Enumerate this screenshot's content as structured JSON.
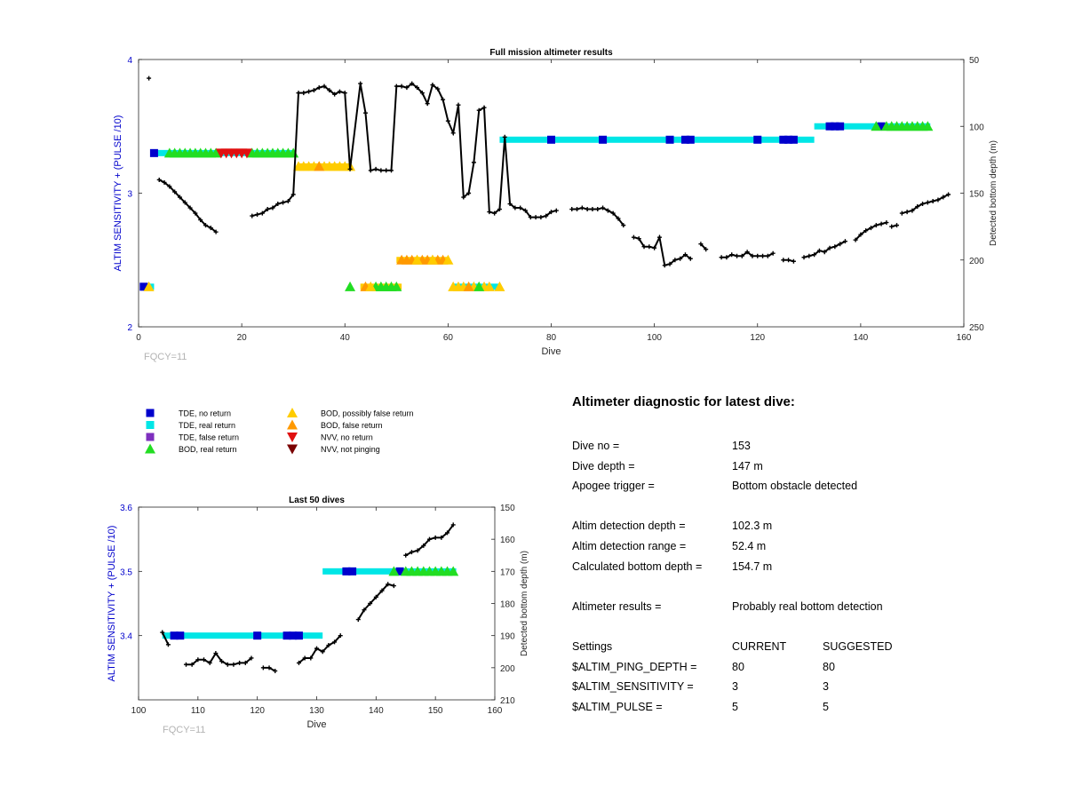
{
  "chart_data": [
    {
      "type": "line",
      "title": "Full mission altimeter results",
      "xlabel": "Dive",
      "ylabel": "ALTIM SENSITIVITY + (PULSE /10)",
      "y2label": "Detected bottom depth (m)",
      "xlim": [
        0,
        160
      ],
      "ylim": [
        2,
        4
      ],
      "y2lim": [
        250,
        50
      ],
      "x_ticks": [
        "0",
        "20",
        "40",
        "60",
        "80",
        "100",
        "120",
        "140",
        "160"
      ],
      "y_ticks": [
        "2",
        "3",
        "4"
      ],
      "y2_ticks": [
        "50",
        "100",
        "150",
        "200",
        "250"
      ],
      "annotation": "FQCY=11",
      "grid": false,
      "bottom_depth_series": [
        [
          [
            2,
            64
          ]
        ],
        [
          [
            4,
            140
          ],
          [
            5,
            142
          ],
          [
            6,
            145
          ],
          [
            7,
            149
          ],
          [
            8,
            153
          ],
          [
            9,
            157
          ],
          [
            10,
            161
          ],
          [
            11,
            165
          ],
          [
            12,
            170
          ],
          [
            13,
            174
          ],
          [
            14,
            176
          ],
          [
            15,
            179
          ]
        ],
        [
          [
            22,
            167
          ],
          [
            23,
            166
          ],
          [
            24,
            165
          ],
          [
            25,
            162
          ],
          [
            26,
            161
          ],
          [
            27,
            158
          ],
          [
            28,
            157
          ],
          [
            29,
            156
          ],
          [
            30,
            151
          ],
          [
            31,
            75
          ],
          [
            32,
            75
          ],
          [
            33,
            74
          ],
          [
            34,
            73
          ],
          [
            35,
            71
          ],
          [
            36,
            70
          ],
          [
            37,
            73
          ],
          [
            38,
            76
          ],
          [
            39,
            74
          ],
          [
            40,
            75
          ],
          [
            41,
            132
          ],
          [
            43,
            68
          ],
          [
            44,
            90
          ],
          [
            45,
            133
          ],
          [
            46,
            132
          ],
          [
            47,
            133
          ],
          [
            48,
            133
          ],
          [
            49,
            133
          ],
          [
            50,
            70
          ],
          [
            51,
            70
          ],
          [
            52,
            71
          ],
          [
            53,
            68
          ],
          [
            54,
            71
          ],
          [
            55,
            75
          ],
          [
            56,
            83
          ],
          [
            57,
            69
          ],
          [
            58,
            72
          ],
          [
            59,
            80
          ],
          [
            60,
            96
          ],
          [
            61,
            105
          ],
          [
            62,
            84
          ],
          [
            63,
            153
          ],
          [
            64,
            150
          ],
          [
            65,
            127
          ],
          [
            66,
            88
          ],
          [
            67,
            86
          ],
          [
            68,
            164
          ],
          [
            69,
            165
          ],
          [
            70,
            162
          ],
          [
            71,
            108
          ],
          [
            72,
            158
          ],
          [
            73,
            161
          ],
          [
            74,
            161
          ],
          [
            75,
            163
          ],
          [
            76,
            168
          ],
          [
            77,
            168
          ],
          [
            78,
            168
          ],
          [
            79,
            167
          ],
          [
            80,
            164
          ],
          [
            81,
            163
          ]
        ],
        [
          [
            84,
            162
          ],
          [
            85,
            162
          ],
          [
            86,
            161
          ],
          [
            87,
            162
          ],
          [
            88,
            162
          ],
          [
            89,
            162
          ],
          [
            90,
            161
          ],
          [
            91,
            163
          ],
          [
            92,
            165
          ],
          [
            93,
            169
          ],
          [
            94,
            174
          ]
        ],
        [
          [
            96,
            183
          ],
          [
            97,
            184
          ],
          [
            98,
            190
          ],
          [
            99,
            190
          ],
          [
            100,
            191
          ],
          [
            101,
            183
          ],
          [
            102,
            204
          ],
          [
            103,
            203
          ],
          [
            104,
            200
          ],
          [
            105,
            199
          ],
          [
            106,
            196
          ],
          [
            107,
            199
          ]
        ],
        [
          [
            109,
            188
          ],
          [
            110,
            192
          ]
        ],
        [
          [
            113,
            198
          ],
          [
            114,
            198
          ],
          [
            115,
            196
          ],
          [
            116,
            197
          ],
          [
            117,
            197
          ],
          [
            118,
            194
          ],
          [
            119,
            197
          ],
          [
            120,
            197
          ],
          [
            121,
            197
          ],
          [
            122,
            197
          ],
          [
            123,
            195
          ]
        ],
        [
          [
            125,
            200
          ],
          [
            126,
            200
          ],
          [
            127,
            201
          ]
        ],
        [
          [
            129,
            198
          ],
          [
            130,
            197
          ],
          [
            131,
            196
          ],
          [
            132,
            193
          ],
          [
            133,
            194
          ],
          [
            134,
            191
          ],
          [
            135,
            190
          ],
          [
            136,
            188
          ],
          [
            137,
            186
          ]
        ],
        [
          [
            139,
            185
          ],
          [
            140,
            181
          ],
          [
            141,
            178
          ],
          [
            142,
            176
          ],
          [
            143,
            174
          ],
          [
            144,
            173
          ],
          [
            145,
            172
          ]
        ],
        [
          [
            146,
            175
          ],
          [
            147,
            174
          ]
        ],
        [
          [
            148,
            165
          ],
          [
            149,
            164
          ],
          [
            150,
            163
          ],
          [
            151,
            160
          ],
          [
            152,
            158
          ],
          [
            153,
            157
          ],
          [
            154,
            156
          ],
          [
            155,
            155
          ],
          [
            156,
            153
          ],
          [
            157,
            151
          ]
        ]
      ],
      "bars": [
        {
          "y": 3.3,
          "from": 2.5,
          "to": 30,
          "color": "#00e6e6"
        },
        {
          "y": 3.2,
          "from": 31,
          "to": 41,
          "color": "#ffcc00"
        },
        {
          "y": 3.4,
          "from": 70,
          "to": 131,
          "color": "#00e6e6"
        },
        {
          "y": 3.5,
          "from": 131,
          "to": 153.5,
          "color": "#00e6e6"
        },
        {
          "y": 2.5,
          "from": 50,
          "to": 60,
          "color": "#ffcc00"
        },
        {
          "y": 2.3,
          "from": 43,
          "to": 51,
          "color": "#ffcc00"
        },
        {
          "y": 2.3,
          "from": 61,
          "to": 70,
          "color": "#00e6e6"
        },
        {
          "y": 2.3,
          "from": 0.5,
          "to": 3,
          "color": "#00e6e6"
        }
      ],
      "markers": [
        {
          "type": "tde_no_return",
          "y": 3.3,
          "x": [
            3
          ]
        },
        {
          "type": "bod_real",
          "y": 3.3,
          "x": [
            6,
            7,
            8,
            9,
            10,
            11,
            12,
            13,
            14,
            15,
            22,
            23,
            24,
            25,
            26,
            27,
            28,
            29,
            30
          ]
        },
        {
          "type": "nvv_no_return",
          "y": 3.3,
          "x": [
            16,
            17,
            18,
            19,
            20,
            21
          ]
        },
        {
          "type": "bod_possibly_false",
          "y": 3.2,
          "x": [
            31,
            32,
            33,
            34,
            35,
            36,
            37,
            38,
            39,
            40,
            41
          ]
        },
        {
          "type": "bod_false",
          "y": 3.2,
          "x": [
            35
          ]
        },
        {
          "type": "tde_no_return",
          "y": 3.4,
          "x": [
            80,
            90,
            103,
            106,
            107,
            120,
            125,
            126,
            127
          ]
        },
        {
          "type": "tde_no_return",
          "y": 3.5,
          "x": [
            134,
            135,
            136,
            144
          ]
        },
        {
          "type": "bod_real",
          "y": 3.5,
          "x": [
            143,
            145,
            146,
            147,
            148,
            149,
            150,
            151,
            152,
            153
          ]
        },
        {
          "type": "bod_false",
          "y": 2.5,
          "x": [
            51,
            52,
            53,
            54,
            55,
            56,
            57,
            58,
            59
          ]
        },
        {
          "type": "bod_possibly_false",
          "y": 2.5,
          "x": [
            54,
            57,
            60
          ]
        },
        {
          "type": "bod_real",
          "y": 2.3,
          "x": [
            41,
            46,
            47,
            48,
            49,
            50
          ]
        },
        {
          "type": "bod_false",
          "y": 2.3,
          "x": [
            44
          ]
        },
        {
          "type": "bod_possibly_false",
          "y": 2.3,
          "x": [
            45,
            61,
            62,
            63,
            65,
            67,
            68,
            70
          ]
        },
        {
          "type": "bod_false",
          "y": 2.3,
          "x": [
            64
          ]
        },
        {
          "type": "bod_real",
          "y": 2.3,
          "x": [
            66
          ]
        },
        {
          "type": "tde_no_return",
          "y": 2.3,
          "x": [
            1
          ]
        },
        {
          "type": "bod_possibly_false",
          "y": 2.3,
          "x": [
            2
          ]
        }
      ]
    },
    {
      "type": "line",
      "title": "Last 50 dives",
      "xlabel": "Dive",
      "ylabel": "ALTIM SENSITIVITY + (PULSE /10)",
      "y2label": "Detected bottom depth (m)",
      "xlim": [
        100,
        160
      ],
      "ylim": [
        3.3,
        3.6
      ],
      "y2lim": [
        210,
        150
      ],
      "x_ticks": [
        "100",
        "110",
        "120",
        "130",
        "140",
        "150",
        "160"
      ],
      "y_ticks": [
        "3.4",
        "3.5",
        "3.6"
      ],
      "y2_ticks": [
        "150",
        "160",
        "170",
        "180",
        "190",
        "200",
        "210"
      ],
      "annotation": "FQCY=11",
      "grid": false,
      "bottom_depth_series": [
        [
          [
            104,
            189
          ],
          [
            105,
            192.8
          ]
        ],
        [
          [
            108,
            199
          ],
          [
            109,
            199
          ],
          [
            110,
            197.5
          ],
          [
            111,
            197.5
          ],
          [
            112,
            198.5
          ],
          [
            113,
            195.5
          ],
          [
            114,
            198
          ],
          [
            115,
            199
          ],
          [
            116,
            199
          ],
          [
            117,
            198.5
          ],
          [
            118,
            198.5
          ],
          [
            119,
            197
          ]
        ],
        [
          [
            121,
            200
          ],
          [
            122,
            200
          ],
          [
            123,
            201
          ]
        ],
        [
          [
            127,
            198.5
          ],
          [
            128,
            197
          ],
          [
            129,
            197
          ],
          [
            130,
            194
          ],
          [
            131,
            195
          ],
          [
            132,
            193
          ],
          [
            133,
            192
          ],
          [
            134,
            190
          ]
        ],
        [
          [
            137,
            185
          ],
          [
            138,
            182
          ],
          [
            139,
            180
          ],
          [
            140,
            178
          ],
          [
            141,
            176
          ],
          [
            142,
            174
          ],
          [
            143,
            174.5
          ]
        ],
        [
          [
            145,
            165
          ],
          [
            146,
            164
          ],
          [
            147,
            163.5
          ],
          [
            148,
            162
          ],
          [
            149,
            160
          ],
          [
            150,
            159.5
          ],
          [
            151,
            159.5
          ],
          [
            152,
            158
          ],
          [
            153,
            155.5
          ]
        ]
      ],
      "bars": [
        {
          "y": 3.4,
          "from": 104,
          "to": 131,
          "color": "#00e6e6"
        },
        {
          "y": 3.5,
          "from": 131,
          "to": 153.5,
          "color": "#00e6e6"
        }
      ],
      "markers": [
        {
          "type": "tde_no_return",
          "y": 3.4,
          "x": [
            106,
            107,
            120,
            125,
            126,
            127
          ]
        },
        {
          "type": "tde_no_return",
          "y": 3.5,
          "x": [
            135,
            136,
            144
          ]
        },
        {
          "type": "bod_real",
          "y": 3.5,
          "x": [
            143,
            145,
            146,
            147,
            148,
            149,
            150,
            151,
            152,
            153
          ]
        }
      ]
    }
  ],
  "legend": [
    {
      "key": "tde_no_return",
      "label": "TDE, no return",
      "color": "#0000cc"
    },
    {
      "key": "tde_real_return",
      "label": "TDE, real return",
      "color": "#00e6e6"
    },
    {
      "key": "tde_false_return",
      "label": "TDE, false return",
      "color": "#7e2fbe"
    },
    {
      "key": "bod_real",
      "label": "BOD, real return",
      "color": "#22dd22"
    },
    {
      "key": "bod_possibly_false",
      "label": "BOD, possibly false return",
      "color": "#ffcc00"
    },
    {
      "key": "bod_false",
      "label": "BOD, false return",
      "color": "#ff9900"
    },
    {
      "key": "nvv_no_return",
      "label": "NVV, no return",
      "color": "#e01010"
    },
    {
      "key": "nvv_not_pinging",
      "label": "NVV, not pinging",
      "color": "#7a0000"
    }
  ],
  "diagnostic": {
    "title": "Altimeter diagnostic for latest dive:",
    "dive_no": {
      "label": "Dive no =",
      "value": "153"
    },
    "dive_depth": {
      "label": "Dive depth =",
      "value": "147 m"
    },
    "apogee_trigger": {
      "label": "Apogee trigger =",
      "value": "Bottom obstacle detected"
    },
    "altim_detection_depth": {
      "label": "Altim detection depth =",
      "value": "102.3 m"
    },
    "altim_detection_range": {
      "label": "Altim detection range =",
      "value": "52.4 m"
    },
    "calculated_bottom_depth": {
      "label": "Calculated bottom depth =",
      "value": "154.7 m"
    },
    "altimeter_results": {
      "label": "Altimeter results =",
      "value": "Probably real bottom detection"
    },
    "settings": {
      "header": {
        "label": "Settings",
        "current": "CURRENT",
        "suggested": "SUGGESTED"
      },
      "ping_depth": {
        "label": "$ALTIM_PING_DEPTH =",
        "current": "80",
        "suggested": "80"
      },
      "sensitivity": {
        "label": "$ALTIM_SENSITIVITY =",
        "current": "3",
        "suggested": "3"
      },
      "pulse": {
        "label": "$ALTIM_PULSE =",
        "current": "5",
        "suggested": "5"
      }
    }
  }
}
